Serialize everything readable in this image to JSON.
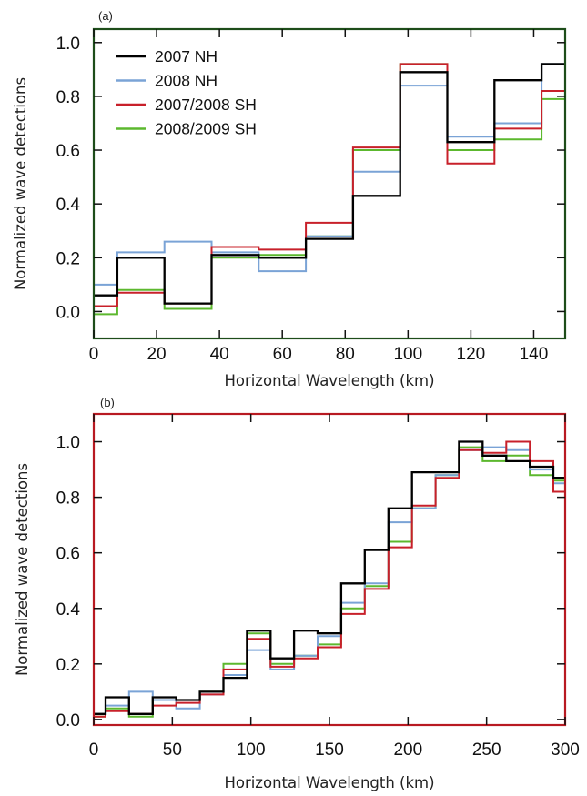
{
  "colors": {
    "2007 NH": "#000000",
    "2008 NH": "#7aa3d6",
    "2007/2008 SH": "#c8202a",
    "2008/2009 SH": "#5cb82e"
  },
  "chart_data": [
    {
      "panel_label": "(a)",
      "type": "line",
      "step": true,
      "xlabel": "Horizontal Wavelength (km)",
      "ylabel": "Normalized wave detections",
      "xlim": [
        0,
        150
      ],
      "ylim": [
        -0.1,
        1.05
      ],
      "xticks": [
        0,
        20,
        40,
        60,
        80,
        100,
        120,
        140
      ],
      "yticks": [
        0.0,
        0.2,
        0.4,
        0.6,
        0.8,
        1.0
      ],
      "ytick_labels": [
        "0.0",
        "0.2",
        "0.4",
        "0.6",
        "0.8",
        "1.0"
      ],
      "bin_edges": [
        0,
        7.5,
        22.5,
        37.5,
        52.5,
        67.5,
        82.5,
        97.5,
        112.5,
        127.5,
        142.5,
        150
      ],
      "legend": {
        "position": "top-left",
        "entries": [
          "2007 NH",
          "2008 NH",
          "2007/2008 SH",
          "2008/2009 SH"
        ]
      },
      "series": [
        {
          "name": "2007 NH",
          "values": [
            0.06,
            0.2,
            0.03,
            0.21,
            0.2,
            0.27,
            0.43,
            0.89,
            0.63,
            0.86,
            0.92
          ]
        },
        {
          "name": "2008 NH",
          "values": [
            0.1,
            0.22,
            0.26,
            0.22,
            0.15,
            0.28,
            0.52,
            0.84,
            0.65,
            0.7,
            0.92
          ]
        },
        {
          "name": "2007/2008 SH",
          "values": [
            0.02,
            0.07,
            0.03,
            0.24,
            0.23,
            0.33,
            0.61,
            0.92,
            0.55,
            0.68,
            0.82
          ]
        },
        {
          "name": "2008/2009 SH",
          "values": [
            -0.01,
            0.08,
            0.01,
            0.2,
            0.21,
            0.28,
            0.6,
            0.92,
            0.6,
            0.64,
            0.79
          ]
        }
      ]
    },
    {
      "panel_label": "(b)",
      "type": "line",
      "step": true,
      "xlabel": "Horizontal Wavelength (km)",
      "ylabel": "Normalized wave detections",
      "xlim": [
        0,
        300
      ],
      "ylim": [
        -0.02,
        1.1
      ],
      "xticks": [
        0,
        50,
        100,
        150,
        200,
        250,
        300
      ],
      "yticks": [
        0.0,
        0.2,
        0.4,
        0.6,
        0.8,
        1.0
      ],
      "ytick_labels": [
        "0.0",
        "0.2",
        "0.4",
        "0.6",
        "0.8",
        "1.0"
      ],
      "bin_edges": [
        0,
        7.5,
        22.5,
        37.5,
        52.5,
        67.5,
        82.5,
        97.5,
        112.5,
        127.5,
        142.5,
        157.5,
        172.5,
        187.5,
        202.5,
        217.5,
        232.5,
        247.5,
        262.5,
        277.5,
        292.5,
        300
      ],
      "series": [
        {
          "name": "2007 NH",
          "values": [
            0.02,
            0.08,
            0.02,
            0.08,
            0.07,
            0.1,
            0.15,
            0.32,
            0.22,
            0.32,
            0.31,
            0.49,
            0.61,
            0.76,
            0.89,
            0.89,
            1.0,
            0.95,
            0.93,
            0.91,
            0.87
          ]
        },
        {
          "name": "2008 NH",
          "values": [
            0.02,
            0.05,
            0.1,
            0.07,
            0.04,
            0.09,
            0.16,
            0.25,
            0.18,
            0.23,
            0.3,
            0.42,
            0.49,
            0.71,
            0.76,
            0.88,
            0.97,
            0.98,
            0.97,
            0.9,
            0.85
          ]
        },
        {
          "name": "2007/2008 SH",
          "values": [
            0.01,
            0.03,
            0.02,
            0.05,
            0.06,
            0.09,
            0.18,
            0.29,
            0.19,
            0.22,
            0.26,
            0.38,
            0.47,
            0.62,
            0.77,
            0.87,
            0.97,
            0.96,
            1.0,
            0.93,
            0.82
          ]
        },
        {
          "name": "2008/2009 SH",
          "values": [
            0.01,
            0.04,
            0.01,
            0.07,
            0.07,
            0.1,
            0.2,
            0.31,
            0.2,
            0.23,
            0.27,
            0.4,
            0.48,
            0.64,
            0.76,
            0.88,
            0.98,
            0.93,
            0.95,
            0.88,
            0.86
          ]
        }
      ]
    }
  ]
}
